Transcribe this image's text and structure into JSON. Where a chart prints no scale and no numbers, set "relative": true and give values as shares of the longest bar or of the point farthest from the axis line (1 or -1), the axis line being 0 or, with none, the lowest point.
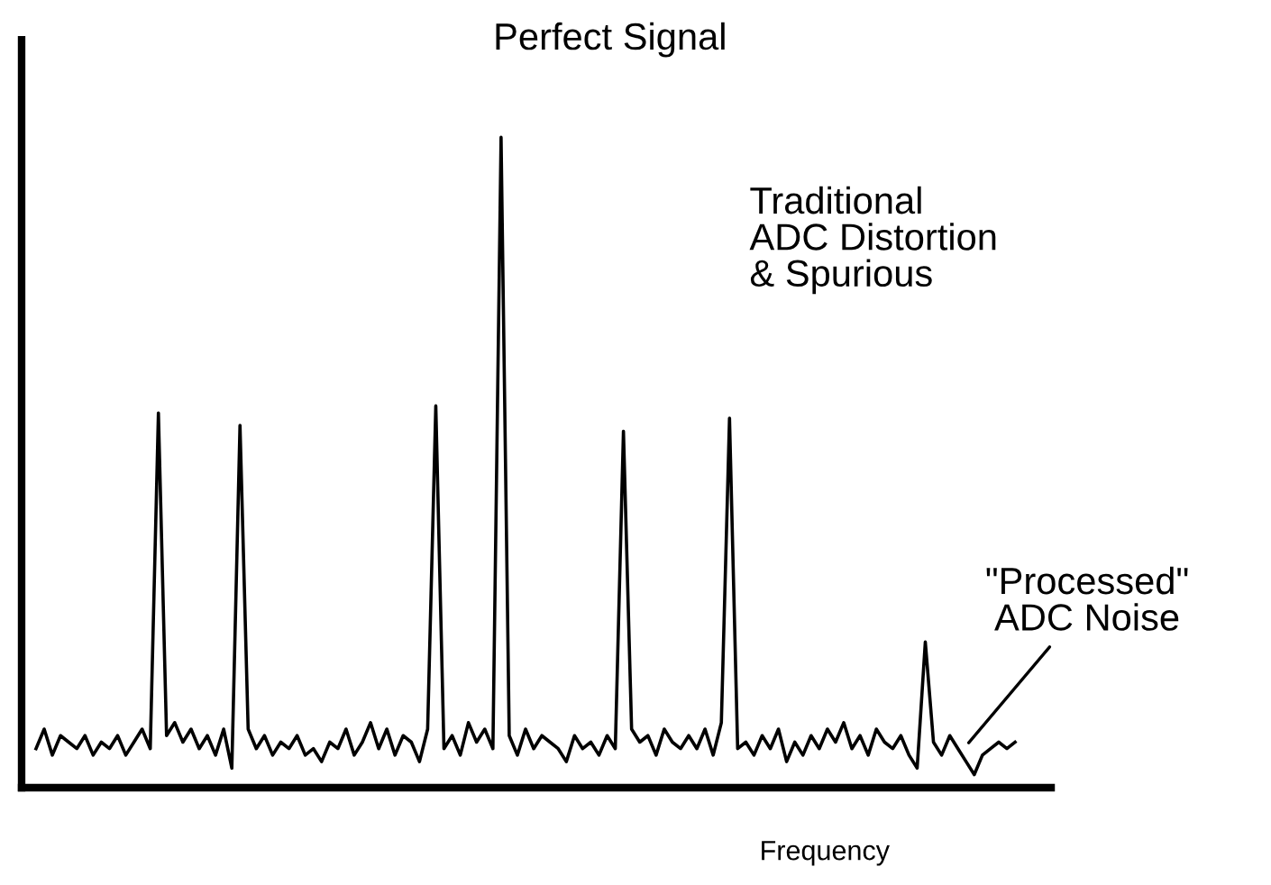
{
  "chart_data": {
    "type": "line",
    "relative": true,
    "xlabel": "Frequency",
    "categories": [
      null,
      null,
      null,
      null,
      null,
      null,
      null,
      null,
      null,
      null,
      null,
      null,
      null,
      null,
      null,
      null,
      null,
      null,
      null,
      null,
      null,
      null,
      null,
      null,
      null,
      null,
      null,
      null,
      null,
      null,
      null,
      null,
      null,
      null,
      null,
      null,
      null,
      null,
      null,
      null,
      null,
      null,
      null,
      null,
      null,
      null,
      null,
      null,
      null,
      null,
      null,
      null,
      null,
      null,
      null,
      null,
      null,
      null,
      null,
      null,
      null,
      null,
      null,
      null,
      null,
      null,
      null,
      null,
      null,
      null,
      null,
      null,
      null,
      null,
      null,
      null,
      null,
      null,
      null,
      null,
      null,
      null,
      null,
      null,
      null,
      null,
      null,
      null,
      null,
      null,
      null,
      null,
      null,
      null,
      null,
      null,
      null,
      null,
      null,
      null,
      null,
      null,
      null,
      null,
      null,
      null,
      null,
      null,
      null,
      null,
      null,
      null,
      null,
      null,
      null,
      null,
      null,
      null,
      null,
      null,
      null
    ],
    "series": [
      {
        "color": "#000000",
        "values": [
          0.06,
          0.09,
          0.05,
          0.08,
          0.07,
          0.06,
          0.08,
          0.05,
          0.07,
          0.06,
          0.08,
          0.05,
          0.07,
          0.09,
          0.06,
          0.576,
          0.08,
          0.1,
          0.07,
          0.09,
          0.06,
          0.08,
          0.05,
          0.09,
          0.03,
          0.557,
          0.09,
          0.06,
          0.08,
          0.05,
          0.07,
          0.06,
          0.08,
          0.05,
          0.06,
          0.04,
          0.07,
          0.06,
          0.09,
          0.05,
          0.07,
          0.1,
          0.06,
          0.09,
          0.05,
          0.08,
          0.07,
          0.04,
          0.09,
          0.587,
          0.06,
          0.08,
          0.05,
          0.1,
          0.07,
          0.09,
          0.06,
          1,
          0.08,
          0.05,
          0.09,
          0.06,
          0.08,
          0.07,
          0.06,
          0.04,
          0.08,
          0.06,
          0.07,
          0.05,
          0.08,
          0.06,
          0.548,
          0.09,
          0.07,
          0.08,
          0.05,
          0.09,
          0.07,
          0.06,
          0.08,
          0.06,
          0.09,
          0.05,
          0.1,
          0.568,
          0.06,
          0.07,
          0.05,
          0.08,
          0.06,
          0.09,
          0.04,
          0.07,
          0.05,
          0.08,
          0.06,
          0.09,
          0.07,
          0.1,
          0.06,
          0.08,
          0.05,
          0.09,
          0.07,
          0.06,
          0.08,
          0.05,
          0.03,
          0.224,
          0.07,
          0.05,
          0.08,
          0.06,
          0.04,
          0.02,
          0.05,
          0.06,
          0.07,
          0.06,
          0.07
        ]
      }
    ],
    "annotations": [
      "Perfect Signal",
      "Traditional\nADC Distortion\n& Spurious",
      "\"Processed\"\nADC Noise"
    ]
  }
}
